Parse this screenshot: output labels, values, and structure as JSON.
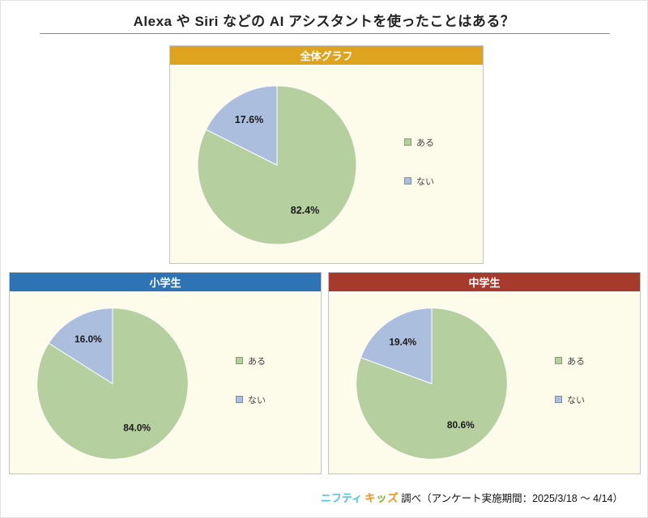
{
  "page": {
    "title": "Alexa や Siri などの AI アシスタントを使ったことはある？"
  },
  "footer": {
    "brand_blue": "ニフティ",
    "brand_kids": [
      "キ",
      "ッ",
      "ズ"
    ],
    "credit": "調べ（アンケート実施期間：2025/3/18 ～ 4/14）"
  },
  "chart_data": [
    {
      "type": "pie",
      "title": "全体グラフ",
      "header_color": "#dfa41f",
      "labels": [
        "ある",
        "ない"
      ],
      "values": [
        82.4,
        17.6
      ],
      "value_labels": [
        "82.4%",
        "17.6%"
      ],
      "colors": [
        "#b6cf9e",
        "#abbede"
      ],
      "bg": "#fdfbe9",
      "legend_position": "right",
      "start_angle": "top",
      "direction": "clockwise"
    },
    {
      "type": "pie",
      "title": "小学生",
      "header_color": "#2e74b5",
      "labels": [
        "ある",
        "ない"
      ],
      "values": [
        84.0,
        16.0
      ],
      "value_labels": [
        "84.0%",
        "16.0%"
      ],
      "colors": [
        "#b6cf9e",
        "#abbede"
      ],
      "bg": "#fdfbe9",
      "legend_position": "right",
      "start_angle": "top",
      "direction": "clockwise"
    },
    {
      "type": "pie",
      "title": "中学生",
      "header_color": "#a63a2c",
      "labels": [
        "ある",
        "ない"
      ],
      "values": [
        80.6,
        19.4
      ],
      "value_labels": [
        "80.6%",
        "19.4%"
      ],
      "colors": [
        "#b6cf9e",
        "#abbede"
      ],
      "bg": "#fdfbe9",
      "legend_position": "right",
      "start_angle": "top",
      "direction": "clockwise"
    }
  ]
}
